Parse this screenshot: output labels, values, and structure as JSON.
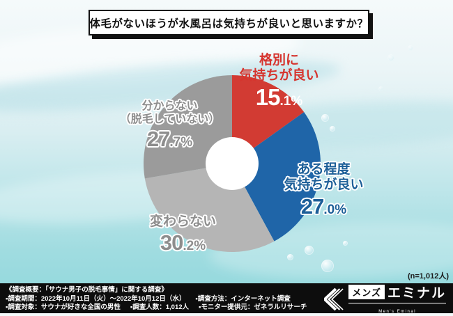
{
  "title": {
    "text": "体毛がないほうが水風呂は気持ちが良いと思いますか？"
  },
  "note": {
    "sample_size": "(n=1,012人)"
  },
  "chart_data": {
    "type": "pie",
    "donut": true,
    "title": "体毛がないほうが水風呂は気持ちが良いと思いますか？",
    "unit": "%",
    "direction": "clockwise",
    "start_angle_deg": 0,
    "legend_position": "around-slices",
    "slices": [
      {
        "label": "格別に気持ちが良い",
        "label_lines": [
          "格別に",
          "気持ちが良い"
        ],
        "value": 15.1,
        "color": "#d23b33"
      },
      {
        "label": "ある程度気持ちが良い",
        "label_lines": [
          "ある程度",
          "気持ちが良い"
        ],
        "value": 27.0,
        "color": "#1f65a8"
      },
      {
        "label": "変わらない",
        "label_lines": [
          "変わらない"
        ],
        "value": 30.2,
        "color": "#b5b5b5"
      },
      {
        "label": "分からない（脱毛していない）",
        "label_lines": [
          "分からない",
          "（脱毛していない）"
        ],
        "value": 27.7,
        "color": "#9b9b9b"
      }
    ]
  },
  "footer": {
    "heading": "《調査概要：「サウナ男子の脱毛事情」に関する調査》",
    "items": [
      "▪調査期間：2022年10月11日（火）～2022年10月12日（水）",
      "▪調査方法：インターネット調査",
      "▪調査対象：サウナが好きな全国の男性",
      "▪調査人数：1,012人",
      "▪モニター提供元：ゼネラルリサーチ"
    ],
    "logo": {
      "brand_jp_1": "メンズ",
      "brand_jp_2": "エミナル",
      "brand_en": "Men's Eminal"
    }
  }
}
